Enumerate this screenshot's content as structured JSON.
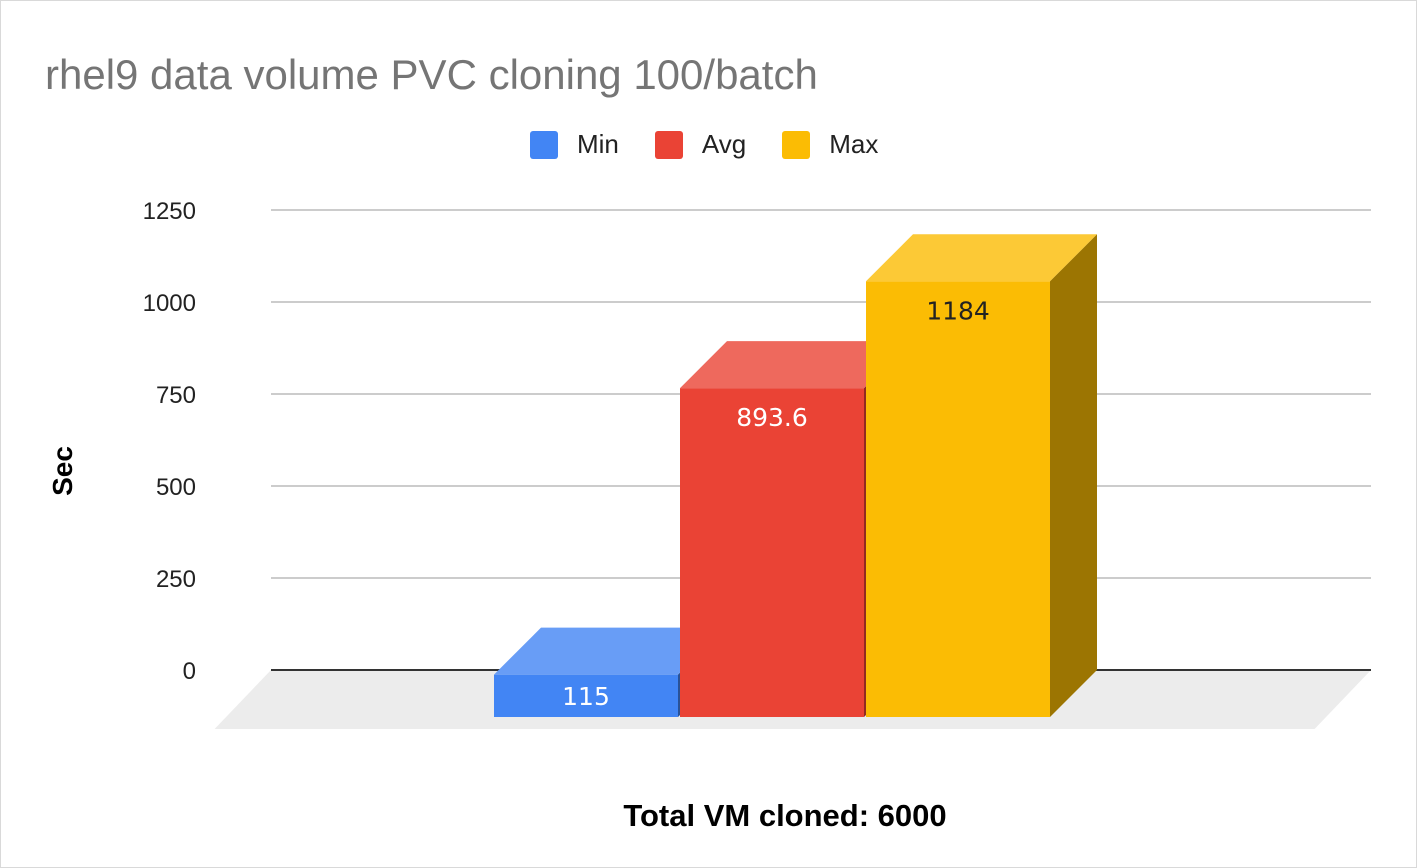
{
  "chart_data": {
    "type": "bar",
    "title": "rhel9 data volume PVC cloning 100/batch",
    "xlabel": "Total VM cloned: 6000",
    "ylabel": "Sec",
    "categories": [
      "Total VM cloned: 6000"
    ],
    "series": [
      {
        "name": "Min",
        "values": [
          115
        ],
        "color": "#4285F4",
        "data_label": "115"
      },
      {
        "name": "Avg",
        "values": [
          893.6
        ],
        "color": "#EA4335",
        "data_label": "893.6"
      },
      {
        "name": "Max",
        "values": [
          1184
        ],
        "color": "#FBBC04",
        "data_label": "1184"
      }
    ],
    "yticks": [
      "0",
      "250",
      "500",
      "750",
      "1000",
      "1250"
    ],
    "ylim": [
      0,
      1250
    ],
    "grid": true,
    "legend_position": "top",
    "style": "3d-bar"
  }
}
